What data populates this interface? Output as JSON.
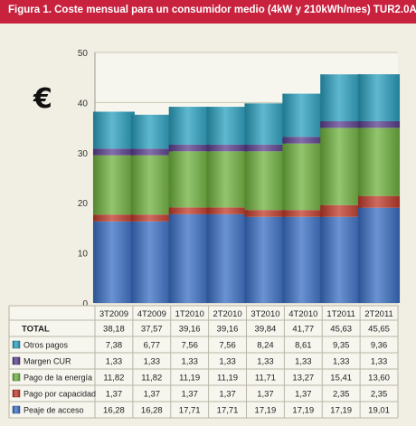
{
  "title": "Figura 1. Coste mensual para un consumidor medio (4kW y 210kWh/mes) TUR2.0A",
  "unit_symbol": "€",
  "table_total_label": "TOTAL",
  "chart_data": {
    "type": "bar",
    "stacked": true,
    "categories": [
      "3T2009",
      "4T2009",
      "1T2010",
      "2T2010",
      "3T2010",
      "4T2010",
      "1T2011",
      "2T2011"
    ],
    "ylim": [
      0,
      50
    ],
    "yticks": [
      0,
      10,
      20,
      30,
      40,
      50
    ],
    "grid": true,
    "totals": [
      "38,18",
      "37,57",
      "39,16",
      "39,16",
      "39,84",
      "41,77",
      "45,63",
      "45,65"
    ],
    "series": [
      {
        "name": "Peaje de acceso",
        "color": "#3a6fc4",
        "values": [
          16.28,
          16.28,
          17.71,
          17.71,
          17.19,
          17.19,
          17.19,
          19.01
        ],
        "labels": [
          "16,28",
          "16,28",
          "17,71",
          "17,71",
          "17,19",
          "17,19",
          "17,19",
          "19,01"
        ]
      },
      {
        "name": "Pago por capacidad",
        "color": "#c0392b",
        "values": [
          1.37,
          1.37,
          1.37,
          1.37,
          1.37,
          1.37,
          2.35,
          2.35
        ],
        "labels": [
          "1,37",
          "1,37",
          "1,37",
          "1,37",
          "1,37",
          "1,37",
          "2,35",
          "2,35"
        ]
      },
      {
        "name": "Pago de la energía",
        "color": "#6fb23f",
        "values": [
          11.82,
          11.82,
          11.19,
          11.19,
          11.71,
          13.27,
          15.41,
          13.6
        ],
        "labels": [
          "11,82",
          "11,82",
          "11,19",
          "11,19",
          "11,71",
          "13,27",
          "15,41",
          "13,60"
        ]
      },
      {
        "name": "Margen CUR",
        "color": "#5a3f8e",
        "values": [
          1.33,
          1.33,
          1.33,
          1.33,
          1.33,
          1.33,
          1.33,
          1.33
        ],
        "labels": [
          "1,33",
          "1,33",
          "1,33",
          "1,33",
          "1,33",
          "1,33",
          "1,33",
          "1,33"
        ]
      },
      {
        "name": "Otros pagos",
        "color": "#2aa0bf",
        "values": [
          7.38,
          6.77,
          7.56,
          7.56,
          8.24,
          8.61,
          9.35,
          9.36
        ],
        "labels": [
          "7,38",
          "6,77",
          "7,56",
          "7,56",
          "8,24",
          "8,61",
          "9,35",
          "9,36"
        ]
      }
    ]
  }
}
